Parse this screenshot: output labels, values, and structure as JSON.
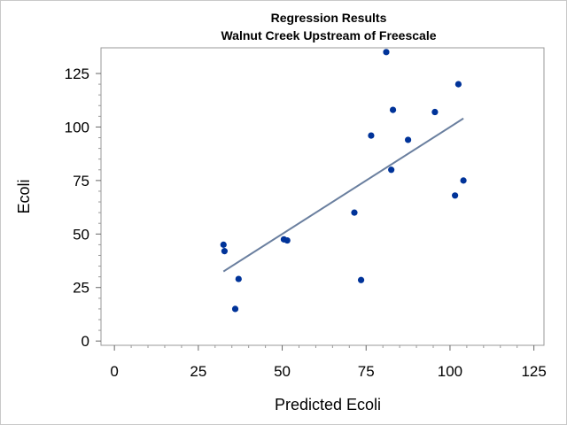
{
  "chart_data": {
    "type": "scatter",
    "title": "Regression Results",
    "subtitle": "Walnut Creek Upstream of Freescale",
    "xlabel": "Predicted Ecoli",
    "ylabel": "Ecoli",
    "xlim": [
      -4,
      128
    ],
    "ylim": [
      -2,
      137
    ],
    "xticks": [
      0,
      25,
      50,
      75,
      100,
      125
    ],
    "yticks": [
      0,
      25,
      50,
      75,
      100,
      125
    ],
    "grid": false,
    "colors": {
      "points": "#003399",
      "fit_line": "#6a7f9f",
      "frame": "#999999"
    },
    "points": [
      {
        "x": 32.5,
        "y": 45
      },
      {
        "x": 32.8,
        "y": 42
      },
      {
        "x": 36.0,
        "y": 15
      },
      {
        "x": 37.0,
        "y": 29
      },
      {
        "x": 50.5,
        "y": 47.5
      },
      {
        "x": 51.5,
        "y": 47
      },
      {
        "x": 71.5,
        "y": 60
      },
      {
        "x": 73.5,
        "y": 28.5
      },
      {
        "x": 76.5,
        "y": 96
      },
      {
        "x": 81.0,
        "y": 135
      },
      {
        "x": 82.5,
        "y": 80
      },
      {
        "x": 83.0,
        "y": 108
      },
      {
        "x": 87.5,
        "y": 94
      },
      {
        "x": 95.5,
        "y": 107
      },
      {
        "x": 101.5,
        "y": 68
      },
      {
        "x": 102.5,
        "y": 120
      },
      {
        "x": 104.0,
        "y": 75
      }
    ],
    "fit_line": {
      "x": [
        32.5,
        104.0
      ],
      "y": [
        32.5,
        104.0
      ]
    }
  }
}
